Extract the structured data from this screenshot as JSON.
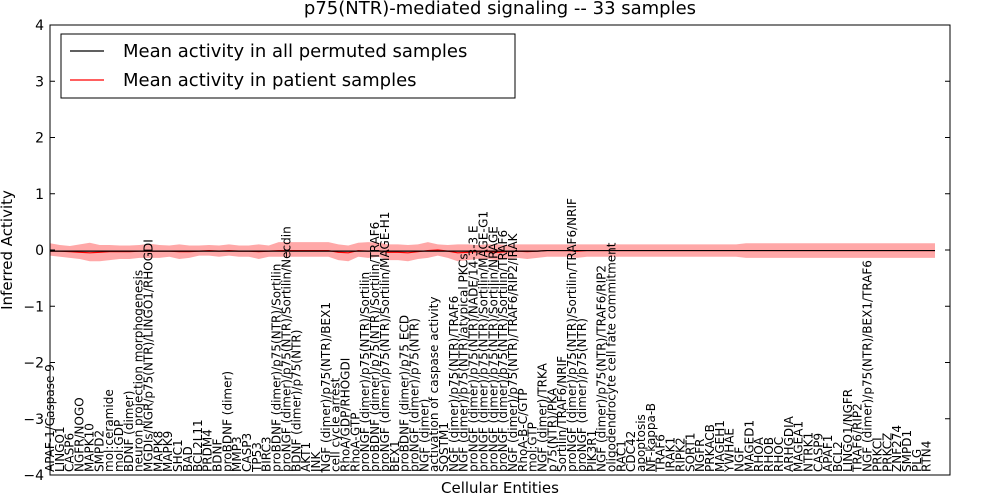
{
  "chart_data": {
    "type": "line",
    "title": "p75(NTR)-mediated signaling -- 33 samples",
    "xlabel": "Cellular Entities",
    "ylabel": "Inferred Activity",
    "ylim": [
      -4,
      4
    ],
    "yticks": [
      -4,
      -3,
      -2,
      -1,
      0,
      1,
      2,
      3,
      4
    ],
    "legend_position": "top-left",
    "series": [
      {
        "name": "Mean activity in all permuted samples",
        "color": "#000000"
      },
      {
        "name": "Mean activity in patient samples",
        "color": "#ff0000"
      }
    ],
    "band_color": "#ff9999",
    "band_upper": [
      0.12,
      0.09,
      0.07,
      0.1,
      0.13,
      0.09,
      0.09,
      0.08,
      0.08,
      0.09,
      0.11,
      0.09,
      0.08,
      0.1,
      0.08,
      0.08,
      0.09,
      0.08,
      0.1,
      0.08,
      0.08,
      0.1,
      0.08,
      0.14,
      0.14,
      0.14,
      0.14,
      0.14,
      0.14,
      0.1,
      0.08,
      0.13,
      0.14,
      0.13,
      0.1,
      0.1,
      0.09,
      0.1,
      0.14,
      0.1,
      0.09,
      0.1,
      0.1,
      0.09,
      0.1,
      0.1,
      0.09,
      0.1,
      0.1,
      0.1,
      0.1,
      0.1,
      0.1,
      0.1,
      0.1,
      0.1,
      0.1,
      0.1,
      0.1,
      0.1,
      0.1,
      0.1,
      0.1,
      0.1,
      0.1,
      0.1,
      0.1,
      0.1,
      0.1,
      0.1,
      0.12,
      0.12,
      0.12,
      0.12,
      0.12,
      0.12,
      0.12,
      0.12,
      0.12,
      0.12,
      0.12,
      0.12,
      0.12,
      0.12,
      0.12,
      0.12,
      0.12,
      0.12,
      0.12,
      0.12
    ],
    "band_lower": [
      -0.1,
      -0.12,
      -0.14,
      -0.16,
      -0.2,
      -0.2,
      -0.18,
      -0.16,
      -0.16,
      -0.14,
      -0.14,
      -0.14,
      -0.12,
      -0.16,
      -0.14,
      -0.1,
      -0.1,
      -0.12,
      -0.1,
      -0.12,
      -0.12,
      -0.16,
      -0.12,
      -0.12,
      -0.12,
      -0.12,
      -0.12,
      -0.12,
      -0.12,
      -0.18,
      -0.2,
      -0.12,
      -0.14,
      -0.12,
      -0.18,
      -0.18,
      -0.2,
      -0.16,
      -0.14,
      -0.1,
      -0.14,
      -0.2,
      -0.18,
      -0.16,
      -0.16,
      -0.18,
      -0.16,
      -0.14,
      -0.16,
      -0.14,
      -0.12,
      -0.12,
      -0.12,
      -0.14,
      -0.12,
      -0.12,
      -0.12,
      -0.12,
      -0.12,
      -0.12,
      -0.12,
      -0.12,
      -0.12,
      -0.12,
      -0.12,
      -0.12,
      -0.12,
      -0.12,
      -0.12,
      -0.12,
      -0.14,
      -0.14,
      -0.14,
      -0.14,
      -0.14,
      -0.14,
      -0.14,
      -0.14,
      -0.14,
      -0.14,
      -0.14,
      -0.14,
      -0.14,
      -0.14,
      -0.14,
      -0.14,
      -0.14,
      -0.14,
      -0.14,
      -0.14
    ],
    "patient_mean": [
      -0.02,
      -0.02,
      -0.03,
      -0.04,
      -0.05,
      -0.04,
      -0.03,
      -0.03,
      -0.03,
      -0.02,
      -0.02,
      -0.02,
      -0.02,
      -0.03,
      -0.03,
      -0.02,
      -0.01,
      -0.02,
      -0.01,
      -0.02,
      -0.02,
      -0.03,
      -0.02,
      -0.01,
      -0.01,
      -0.01,
      -0.01,
      -0.01,
      -0.01,
      -0.04,
      -0.05,
      -0.01,
      -0.02,
      -0.01,
      -0.04,
      -0.04,
      -0.05,
      -0.03,
      -0.01,
      0.0,
      -0.02,
      -0.05,
      -0.04,
      -0.03,
      -0.03,
      -0.04,
      -0.03,
      -0.02,
      -0.03,
      -0.02,
      -0.01,
      -0.01,
      -0.01,
      -0.02,
      -0.01,
      -0.01,
      -0.01,
      -0.01,
      -0.01,
      -0.01,
      -0.01,
      -0.01,
      -0.01,
      -0.01,
      -0.01,
      -0.01,
      -0.01,
      -0.01,
      -0.01,
      -0.01,
      -0.01,
      -0.01,
      -0.01,
      -0.01,
      -0.01,
      -0.01,
      -0.01,
      -0.01,
      -0.01,
      -0.01,
      -0.01,
      -0.01,
      -0.01,
      -0.01,
      -0.01,
      -0.01,
      -0.01,
      -0.01,
      -0.01,
      -0.01
    ],
    "permuted_mean": [
      -0.02,
      -0.02,
      -0.02,
      -0.02,
      -0.02,
      -0.02,
      -0.02,
      -0.02,
      -0.02,
      -0.02,
      -0.02,
      -0.02,
      -0.02,
      -0.02,
      -0.02,
      -0.02,
      -0.02,
      -0.02,
      -0.02,
      -0.02,
      -0.02,
      -0.02,
      -0.02,
      -0.02,
      -0.02,
      -0.02,
      -0.02,
      -0.02,
      -0.02,
      -0.02,
      -0.02,
      -0.02,
      -0.02,
      -0.02,
      -0.02,
      -0.02,
      -0.02,
      -0.02,
      -0.02,
      -0.02,
      -0.02,
      -0.02,
      -0.02,
      -0.02,
      -0.02,
      -0.02,
      -0.02,
      -0.02,
      -0.02,
      -0.02,
      -0.01,
      -0.01,
      -0.01,
      -0.01,
      -0.01,
      -0.01,
      -0.01,
      -0.01,
      -0.01,
      -0.01,
      -0.01,
      -0.01,
      -0.01,
      -0.01,
      -0.01,
      -0.01,
      -0.01,
      -0.01,
      -0.01,
      -0.01,
      -0.01,
      -0.01,
      -0.01,
      -0.01,
      -0.01,
      -0.01,
      -0.01,
      -0.01,
      -0.01,
      -0.01,
      -0.01,
      -0.01,
      -0.01,
      -0.01,
      -0.01,
      -0.01,
      -0.01,
      -0.01,
      -0.01,
      -0.01
    ],
    "entities": [
      "APAF-1/Caspase 9",
      "LINGO1",
      "CASP6",
      "NGFR/NOGO",
      "MAPK10",
      "SMPD2",
      "mol:ceramide",
      "mol:GDP",
      "BDNF (dimer)",
      "neuron projection morphogenesis",
      "MGDIs/NGR/p75(NTR)/LINGO1/RHOGDI",
      "MAPK8",
      "MAPK9",
      "SHC1",
      "BAD",
      "BCL2L11",
      "PRDM4",
      "BDNF",
      "proBDNF (dimer)",
      "MMP3",
      "CASP3",
      "TP53",
      "BIRC3",
      "proBDNF (dimer)/p75(NTR)/Sortilin",
      "proNGF (dimer)/p75(NTR)/Sortilin/Necdin",
      "BDNF (dimer)/p75(NTR)",
      "AKT1",
      "JNK",
      "NGF (dimer)/p75(NTR)/BEX1",
      "cell cycle arrest",
      "RhoA/GDP/RHOGDI",
      "RhoA-GTP",
      "proNGF (dimer)/p75(NTR)/Sortilin",
      "proBDNF (dimer)/p75(NTR)/Sortilin/TRAF6",
      "proNGF (dimer)/p75(NTR)/Sortilin/MAGE-H1",
      "BEX1",
      "proBDNF (dimer)/p75 ECD",
      "proNGF (dimer)/p75(NTR)",
      "NGF (dimer)",
      "activation of caspase activity",
      "SQSTM1",
      "NGF (dimer)/p75(NTR)/TRAF6",
      "NGF (dimer)/p75(NTR)/atypical PKCs",
      "proNGF (dimer)/p75(NTR)/NADE/14-3-3 E",
      "proNGF (dimer)/p75(NTR)/Sortilin/MAGE-G1",
      "proNGF (dimer)/p75(NTR)/Sortilin/NRAGE",
      "proNGF (dimer)/p75(NTR)/Sortilin/TRAF6",
      "NGF (dimer)/p75(NTR)/TRAF6/RIP2/IRAK",
      "RhoA-B-C/GTP",
      "mol:GTP",
      "NGF (dimer)/TRKA",
      "p75(NTR)/PKA",
      "Sortilin/TRAF6/NRIF",
      "proNGF (dimer)/p75(NTR)/Sortilin/TRAF6/NRIF",
      "proNGF (dimer)/p75(NTR)",
      "PIK3R1",
      "NGF (dimer)/p75(NTR)/TRAF6/RIP2",
      "oligodendrocyte cell fate commitment",
      "RAC1",
      "CDC42",
      "apoptosis",
      "NF-kappa-B",
      "TRAF6",
      "IRAK1",
      "RIPK2",
      "SORT1",
      "NGFR",
      "PRKACB",
      "MAGEH1",
      "YWHAE",
      "NGF",
      "MAGED1",
      "RHOA",
      "RHOB",
      "RHOC",
      "ARHGDIA",
      "MAGEA1",
      "NTRK1",
      "CASP9",
      "APAF1",
      "BCL2",
      "LINGO1/NGFR",
      "TRAF6/RIP2",
      "NGF (dimer)/p75(NTR)/BEX1/TRAF6",
      "PRKCI",
      "PRKCZ",
      "ZNF274",
      "SMPD1",
      "PLG",
      "RTN4"
    ],
    "x_label_depths": [
      1,
      1,
      1,
      1,
      1,
      1,
      1,
      1,
      1,
      1,
      1,
      1,
      1,
      1,
      1,
      1,
      1,
      1,
      1,
      1,
      1,
      1,
      1,
      1,
      1,
      1,
      1,
      1,
      1,
      1,
      1,
      1,
      1,
      1,
      1,
      1,
      1,
      1,
      1,
      1,
      1,
      1,
      1,
      1,
      1,
      1,
      1,
      1,
      1,
      1,
      1,
      1,
      1,
      1,
      1,
      1,
      1,
      1,
      1,
      1,
      1,
      1,
      1,
      1,
      1,
      1,
      1,
      1,
      1,
      1,
      1,
      1,
      1,
      1,
      1,
      1,
      1,
      1,
      1,
      1,
      1,
      1,
      1,
      1,
      1,
      1,
      1,
      1,
      1,
      1
    ]
  }
}
